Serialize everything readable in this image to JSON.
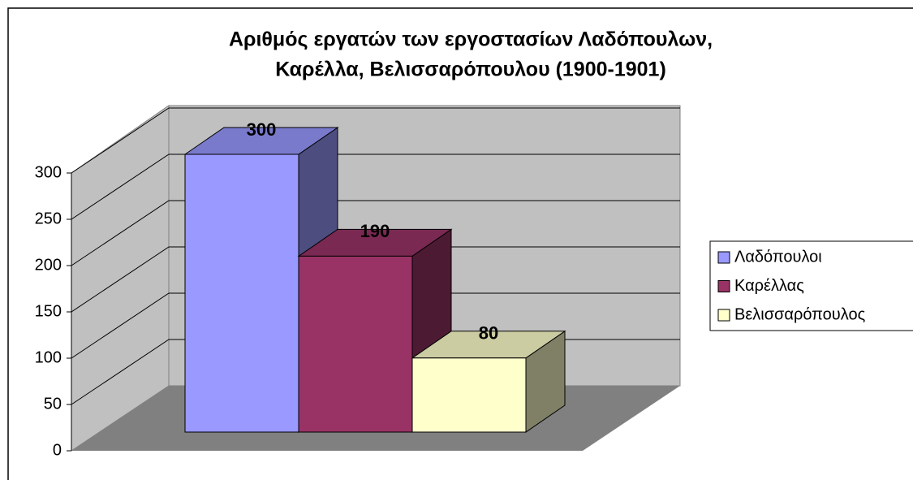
{
  "chart_data": {
    "type": "bar3d",
    "title": [
      "Αριθμός εργατών  των εργοστασίων Λαδόπουλων,",
      "Καρέλλα, Βελισσαρόπουλου (1900-1901)"
    ],
    "series": [
      {
        "name": "Λαδόπουλοι",
        "color": "#9999ff",
        "values": [
          300
        ]
      },
      {
        "name": "Καρέλλας",
        "color": "#993366",
        "values": [
          190
        ]
      },
      {
        "name": "Βελισσαρόπουλος",
        "color": "#ffffcc",
        "values": [
          80
        ]
      }
    ],
    "ylim": [
      0,
      300
    ],
    "yticks": [
      0,
      50,
      100,
      150,
      200,
      250,
      300
    ],
    "grid": true,
    "legend": "right"
  }
}
